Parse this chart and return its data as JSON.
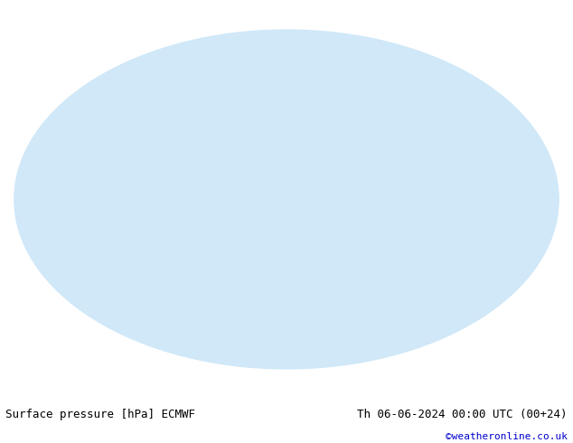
{
  "title_left": "Surface pressure [hPa] ECMWF",
  "title_right": "Th 06-06-2024 00:00 UTC (00+24)",
  "copyright": "©weatheronline.co.uk",
  "bg_color": "#ffffff",
  "map_bg_color": "#d0e8f8",
  "land_color": "#c8e8c0",
  "contour_interval": 4,
  "pressure_min": 960,
  "pressure_max": 1040,
  "isobar_1013_color": "#000000",
  "isobar_low_color": "#0000cc",
  "isobar_high_color": "#cc0000",
  "label_fontsize": 6,
  "footer_fontsize": 9,
  "footer_color": "#000000",
  "copyright_color": "#0000cc"
}
